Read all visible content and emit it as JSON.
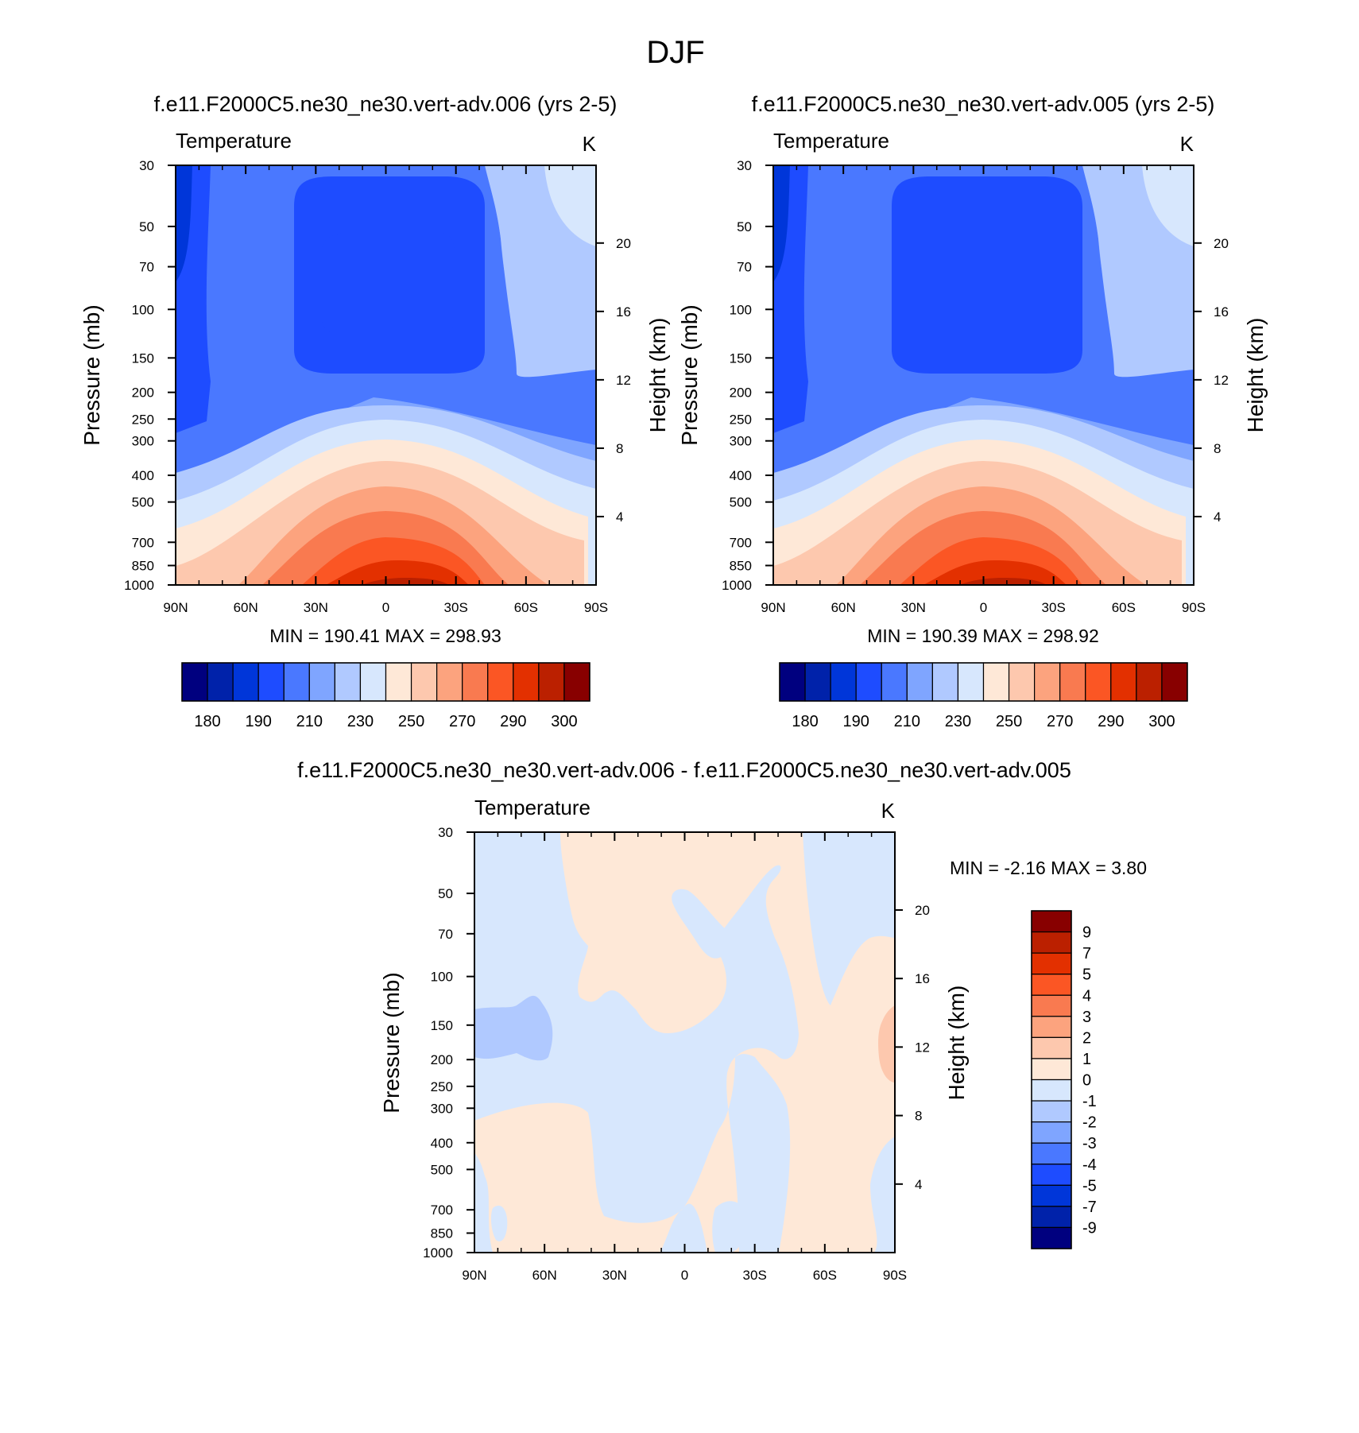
{
  "main_title": "DJF",
  "colors": {
    "abs": [
      "#00007f",
      "#0022aa",
      "#0036d9",
      "#1e4cff",
      "#4a78ff",
      "#7fa5ff",
      "#b0c9ff",
      "#d7e7fd",
      "#fee8d7",
      "#fdc8ae",
      "#fca37e",
      "#f97a50",
      "#fb5624",
      "#e33000",
      "#bb2000",
      "#880000"
    ],
    "diff": [
      "#00007f",
      "#0022aa",
      "#0036d9",
      "#1e4cff",
      "#4a78ff",
      "#7fa5ff",
      "#b0c9ff",
      "#d7e7fd",
      "#fee8d7",
      "#fdc8ae",
      "#fca37e",
      "#f97a50",
      "#fb5624",
      "#e33000",
      "#bb2000",
      "#880000"
    ]
  },
  "chart_data": [
    {
      "type": "heatmap",
      "title": "f.e11.F2000C5.ne30_ne30.vert-adv.006 (yrs 2-5)",
      "left_string": "Temperature",
      "right_string": "K",
      "ylabel": "Pressure (mb)",
      "ylabel_right": "Height (km)",
      "x_ticks": [
        "90N",
        "60N",
        "30N",
        "0",
        "30S",
        "60S",
        "90S"
      ],
      "x_range": [
        90,
        -90
      ],
      "y_ticks": [
        "30",
        "50",
        "70",
        "100",
        "150",
        "200",
        "250",
        "300",
        "400",
        "500",
        "700",
        "850",
        "1000"
      ],
      "y_range": [
        30,
        1000
      ],
      "y_scale": "log",
      "y_right_ticks": [
        "20",
        "16",
        "12",
        "8",
        "4"
      ],
      "min_max": "MIN = 190.41   MAX = 298.93",
      "min": 190.41,
      "max": 298.93,
      "colorbar_ticks": [
        "180",
        "190",
        "210",
        "230",
        "250",
        "270",
        "290",
        "300"
      ],
      "colorbar_orientation": "horizontal"
    },
    {
      "type": "heatmap",
      "title": "f.e11.F2000C5.ne30_ne30.vert-adv.005 (yrs 2-5)",
      "left_string": "Temperature",
      "right_string": "K",
      "ylabel": "Pressure (mb)",
      "ylabel_right": "Height (km)",
      "x_ticks": [
        "90N",
        "60N",
        "30N",
        "0",
        "30S",
        "60S",
        "90S"
      ],
      "x_range": [
        90,
        -90
      ],
      "y_ticks": [
        "30",
        "50",
        "70",
        "100",
        "150",
        "200",
        "250",
        "300",
        "400",
        "500",
        "700",
        "850",
        "1000"
      ],
      "y_range": [
        30,
        1000
      ],
      "y_scale": "log",
      "y_right_ticks": [
        "20",
        "16",
        "12",
        "8",
        "4"
      ],
      "min_max": "MIN = 190.39   MAX = 298.92",
      "min": 190.39,
      "max": 298.92,
      "colorbar_ticks": [
        "180",
        "190",
        "210",
        "230",
        "250",
        "270",
        "290",
        "300"
      ],
      "colorbar_orientation": "horizontal"
    },
    {
      "type": "heatmap",
      "title": "f.e11.F2000C5.ne30_ne30.vert-adv.006 - f.e11.F2000C5.ne30_ne30.vert-adv.005",
      "left_string": "Temperature",
      "right_string": "K",
      "ylabel": "Pressure (mb)",
      "ylabel_right": "Height (km)",
      "x_ticks": [
        "90N",
        "60N",
        "30N",
        "0",
        "30S",
        "60S",
        "90S"
      ],
      "x_range": [
        90,
        -90
      ],
      "y_ticks": [
        "30",
        "50",
        "70",
        "100",
        "150",
        "200",
        "250",
        "300",
        "400",
        "500",
        "700",
        "850",
        "1000"
      ],
      "y_range": [
        30,
        1000
      ],
      "y_scale": "log",
      "y_right_ticks": [
        "20",
        "16",
        "12",
        "8",
        "4"
      ],
      "min_max": "MIN =  -2.16   MAX =   3.80",
      "min": -2.16,
      "max": 3.8,
      "colorbar_ticks": [
        "9",
        "7",
        "5",
        "4",
        "3",
        "2",
        "1",
        "0",
        "-1",
        "-2",
        "-3",
        "-4",
        "-5",
        "-7",
        "-9"
      ],
      "colorbar_orientation": "vertical"
    }
  ]
}
